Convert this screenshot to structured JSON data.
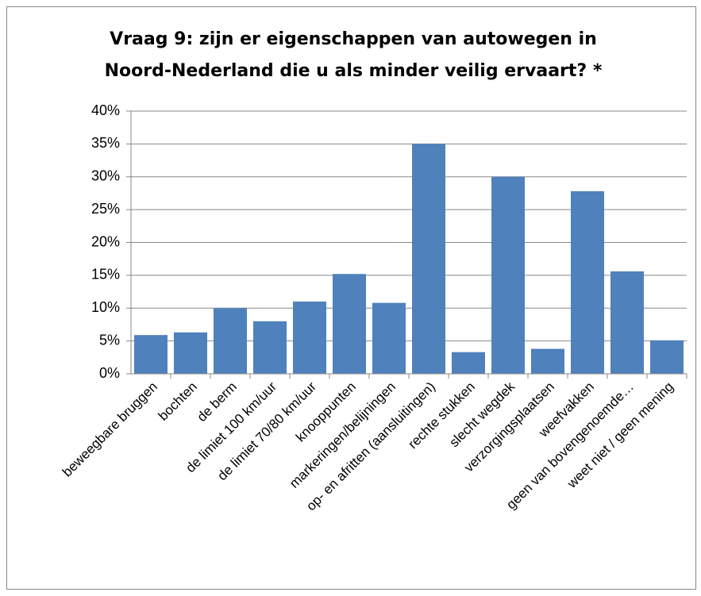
{
  "chart_data": {
    "type": "bar",
    "title": [
      "Vraag 9: zijn er eigenschappen van autowegen in",
      "Noord-Nederland die u als minder veilig ervaart? *"
    ],
    "categories": [
      "beweegbare bruggen",
      "bochten",
      "de berm",
      "de limiet 100 km/uur",
      "de limiet 70/80 km/uur",
      "knooppunten",
      "markeringen/belijningen",
      "op- en afritten (aansluitingen)",
      "rechte stukken",
      "slecht wegdek",
      "verzorgingsplaatsen",
      "weefvakken",
      "geen van bovengenoemde…",
      "weet niet / geen mening"
    ],
    "values": [
      5.9,
      6.3,
      10,
      8,
      11,
      15.2,
      10.8,
      35,
      3.3,
      30,
      3.8,
      27.8,
      15.6,
      5.1
    ],
    "color": "#4f81bd",
    "ylim": [
      0,
      40
    ],
    "yticks": [
      {
        "value": 0,
        "label": "0%"
      },
      {
        "value": 5,
        "label": "5%"
      },
      {
        "value": 10,
        "label": "10%"
      },
      {
        "value": 15,
        "label": "15%"
      },
      {
        "value": 20,
        "label": "20%"
      },
      {
        "value": 25,
        "label": "25%"
      },
      {
        "value": 30,
        "label": "30%"
      },
      {
        "value": 35,
        "label": "35%"
      },
      {
        "value": 40,
        "label": "40%"
      }
    ],
    "grid": true
  }
}
